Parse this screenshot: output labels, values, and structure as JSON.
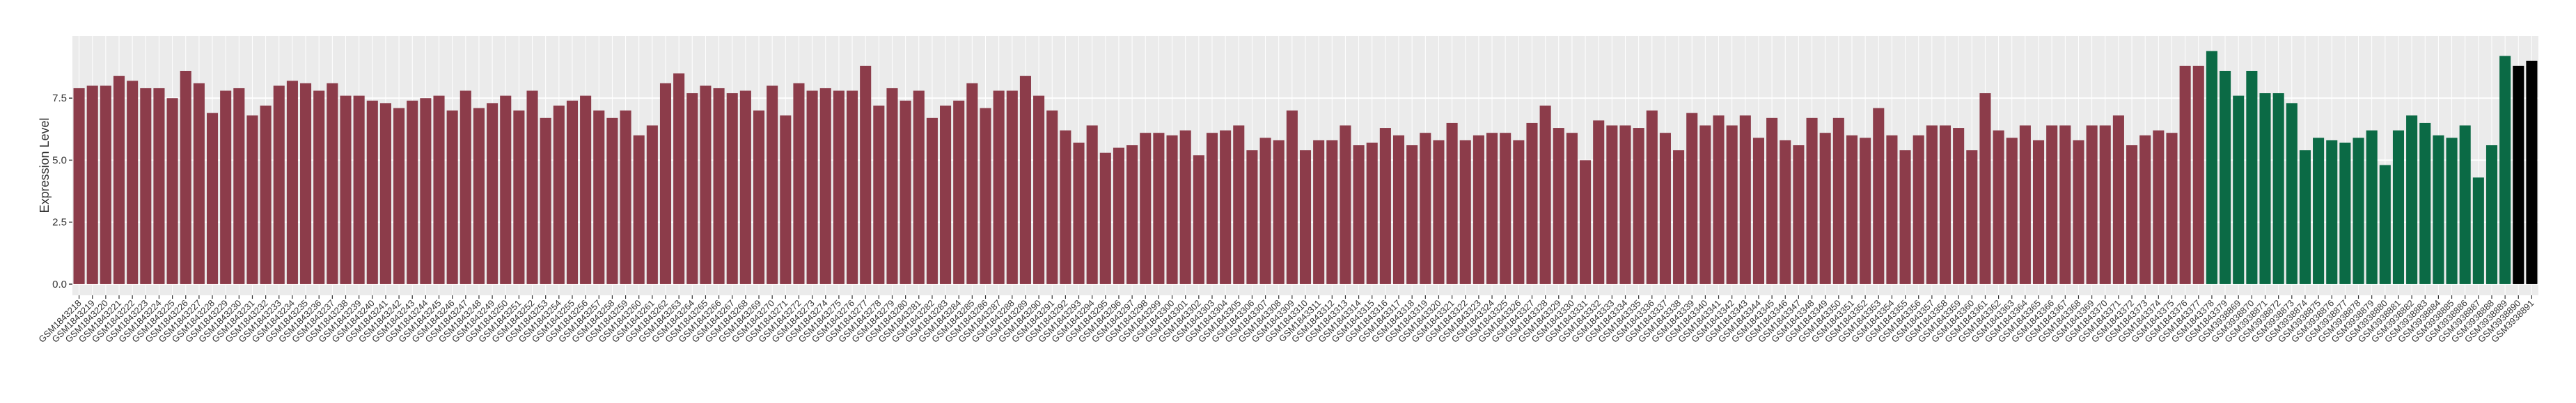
{
  "chart_data": {
    "type": "bar",
    "y_label": "Expression Level",
    "categories": [
      "GSM1843218",
      "GSM1843219",
      "GSM1843220",
      "GSM1843221",
      "GSM1843222",
      "GSM1843223",
      "GSM1843224",
      "GSM1843225",
      "GSM1843226",
      "GSM1843227",
      "GSM1843228",
      "GSM1843229",
      "GSM1843230",
      "GSM1843231",
      "GSM1843232",
      "GSM1843233",
      "GSM1843234",
      "GSM1843235",
      "GSM1843236",
      "GSM1843237",
      "GSM1843238",
      "GSM1843239",
      "GSM1843240",
      "GSM1843241",
      "GSM1843242",
      "GSM1843243",
      "GSM1843244",
      "GSM1843245",
      "GSM1843246",
      "GSM1843247",
      "GSM1843248",
      "GSM1843249",
      "GSM1843250",
      "GSM1843251",
      "GSM1843252",
      "GSM1843253",
      "GSM1843254",
      "GSM1843255",
      "GSM1843256",
      "GSM1843257",
      "GSM1843258",
      "GSM1843259",
      "GSM1843260",
      "GSM1843261",
      "GSM1843262",
      "GSM1843263",
      "GSM1843264",
      "GSM1843265",
      "GSM1843266",
      "GSM1843267",
      "GSM1843268",
      "GSM1843269",
      "GSM1843270",
      "GSM1843271",
      "GSM1843272",
      "GSM1843273",
      "GSM1843274",
      "GSM1843275",
      "GSM1843276",
      "GSM1843277",
      "GSM1843278",
      "GSM1843279",
      "GSM1843280",
      "GSM1843281",
      "GSM1843282",
      "GSM1843283",
      "GSM1843284",
      "GSM1843285",
      "GSM1843286",
      "GSM1843287",
      "GSM1843288",
      "GSM1843289",
      "GSM1843290",
      "GSM1843291",
      "GSM1843292",
      "GSM1843293",
      "GSM1843294",
      "GSM1843295",
      "GSM1843296",
      "GSM1843297",
      "GSM1843298",
      "GSM1843299",
      "GSM1843300",
      "GSM1843301",
      "GSM1843302",
      "GSM1843303",
      "GSM1843304",
      "GSM1843305",
      "GSM1843306",
      "GSM1843307",
      "GSM1843308",
      "GSM1843309",
      "GSM1843310",
      "GSM1843311",
      "GSM1843312",
      "GSM1843313",
      "GSM1843314",
      "GSM1843315",
      "GSM1843316",
      "GSM1843317",
      "GSM1843318",
      "GSM1843319",
      "GSM1843320",
      "GSM1843321",
      "GSM1843322",
      "GSM1843323",
      "GSM1843324",
      "GSM1843325",
      "GSM1843326",
      "GSM1843327",
      "GSM1843328",
      "GSM1843329",
      "GSM1843330",
      "GSM1843331",
      "GSM1843332",
      "GSM1843333",
      "GSM1843334",
      "GSM1843335",
      "GSM1843336",
      "GSM1843337",
      "GSM1843338",
      "GSM1843339",
      "GSM1843340",
      "GSM1843341",
      "GSM1843342",
      "GSM1843343",
      "GSM1843344",
      "GSM1843345",
      "GSM1843346",
      "GSM1843347",
      "GSM1843348",
      "GSM1843349",
      "GSM1843350",
      "GSM1843351",
      "GSM1843352",
      "GSM1843353",
      "GSM1843354",
      "GSM1843355",
      "GSM1843356",
      "GSM1843357",
      "GSM1843358",
      "GSM1843359",
      "GSM1843360",
      "GSM1843361",
      "GSM1843362",
      "GSM1843363",
      "GSM1843364",
      "GSM1843365",
      "GSM1843366",
      "GSM1843367",
      "GSM1843368",
      "GSM1843369",
      "GSM1843370",
      "GSM1843371",
      "GSM1843372",
      "GSM1843373",
      "GSM1843374",
      "GSM1843375",
      "GSM1843376",
      "GSM1843377",
      "GSM1843378",
      "GSM1843379",
      "GSM3938869",
      "GSM3938870",
      "GSM3938871",
      "GSM3938872",
      "GSM3938873",
      "GSM3938874",
      "GSM3938875",
      "GSM3938876",
      "GSM3938877",
      "GSM3938878",
      "GSM3938879",
      "GSM3938880",
      "GSM3938881",
      "GSM3938882",
      "GSM3938883",
      "GSM3938884",
      "GSM3938885",
      "GSM3938886",
      "GSM3938887",
      "GSM3938888",
      "GSM3938889",
      "GSM3938890",
      "GSM3938891"
    ],
    "values": [
      7.9,
      8.0,
      8.0,
      8.4,
      8.2,
      7.9,
      7.9,
      7.5,
      8.6,
      8.1,
      6.9,
      7.8,
      7.9,
      6.8,
      7.2,
      8.0,
      8.2,
      8.1,
      7.8,
      8.1,
      7.6,
      7.6,
      7.4,
      7.3,
      7.1,
      7.4,
      7.5,
      7.6,
      7.0,
      7.8,
      7.1,
      7.3,
      7.6,
      7.0,
      7.8,
      6.7,
      7.2,
      7.4,
      7.6,
      7.0,
      6.7,
      7.0,
      6.0,
      6.4,
      8.1,
      8.5,
      7.7,
      8.0,
      7.9,
      7.7,
      7.8,
      7.0,
      8.0,
      6.8,
      8.1,
      7.8,
      7.9,
      7.8,
      7.8,
      8.8,
      7.2,
      7.9,
      7.4,
      7.8,
      6.7,
      7.2,
      7.4,
      8.1,
      7.1,
      7.8,
      7.8,
      8.4,
      7.6,
      7.0,
      6.2,
      5.7,
      6.4,
      5.3,
      5.5,
      5.6,
      6.1,
      6.1,
      6.0,
      6.2,
      5.2,
      6.1,
      6.2,
      6.4,
      5.4,
      5.9,
      5.8,
      7.0,
      5.4,
      5.8,
      5.8,
      6.4,
      5.6,
      5.7,
      6.3,
      6.0,
      5.6,
      6.1,
      5.8,
      6.5,
      5.8,
      6.0,
      6.1,
      6.1,
      5.8,
      6.5,
      7.2,
      6.3,
      6.1,
      5.0,
      6.6,
      6.4,
      6.4,
      6.3,
      7.0,
      6.1,
      5.4,
      6.9,
      6.4,
      6.8,
      6.4,
      6.8,
      5.9,
      6.7,
      5.8,
      5.6,
      6.7,
      6.1,
      6.7,
      6.0,
      5.9,
      7.1,
      6.0,
      5.4,
      6.0,
      6.4,
      6.4,
      6.3,
      5.4,
      7.7,
      6.2,
      5.9,
      6.4,
      5.8,
      6.4,
      6.4,
      5.8,
      6.4,
      6.4,
      6.8,
      5.6,
      6.0,
      6.2,
      6.1,
      8.8,
      8.8,
      9.4,
      8.6,
      7.6,
      8.6,
      7.7,
      7.7,
      7.3,
      5.4,
      5.9,
      5.8,
      5.7,
      5.9,
      6.2,
      4.8,
      6.2,
      6.8,
      6.5,
      6.0,
      5.9,
      6.4,
      4.3,
      5.6,
      9.2,
      8.8,
      9.0
    ],
    "colors": [
      "#8c3c4a",
      "#8c3c4a",
      "#8c3c4a",
      "#8c3c4a",
      "#8c3c4a",
      "#8c3c4a",
      "#8c3c4a",
      "#8c3c4a",
      "#8c3c4a",
      "#8c3c4a",
      "#8c3c4a",
      "#8c3c4a",
      "#8c3c4a",
      "#8c3c4a",
      "#8c3c4a",
      "#8c3c4a",
      "#8c3c4a",
      "#8c3c4a",
      "#8c3c4a",
      "#8c3c4a",
      "#8c3c4a",
      "#8c3c4a",
      "#8c3c4a",
      "#8c3c4a",
      "#8c3c4a",
      "#8c3c4a",
      "#8c3c4a",
      "#8c3c4a",
      "#8c3c4a",
      "#8c3c4a",
      "#8c3c4a",
      "#8c3c4a",
      "#8c3c4a",
      "#8c3c4a",
      "#8c3c4a",
      "#8c3c4a",
      "#8c3c4a",
      "#8c3c4a",
      "#8c3c4a",
      "#8c3c4a",
      "#8c3c4a",
      "#8c3c4a",
      "#8c3c4a",
      "#8c3c4a",
      "#8c3c4a",
      "#8c3c4a",
      "#8c3c4a",
      "#8c3c4a",
      "#8c3c4a",
      "#8c3c4a",
      "#8c3c4a",
      "#8c3c4a",
      "#8c3c4a",
      "#8c3c4a",
      "#8c3c4a",
      "#8c3c4a",
      "#8c3c4a",
      "#8c3c4a",
      "#8c3c4a",
      "#8c3c4a",
      "#8c3c4a",
      "#8c3c4a",
      "#8c3c4a",
      "#8c3c4a",
      "#8c3c4a",
      "#8c3c4a",
      "#8c3c4a",
      "#8c3c4a",
      "#8c3c4a",
      "#8c3c4a",
      "#8c3c4a",
      "#8c3c4a",
      "#8c3c4a",
      "#8c3c4a",
      "#8c3c4a",
      "#8c3c4a",
      "#8c3c4a",
      "#8c3c4a",
      "#8c3c4a",
      "#8c3c4a",
      "#8c3c4a",
      "#8c3c4a",
      "#8c3c4a",
      "#8c3c4a",
      "#8c3c4a",
      "#8c3c4a",
      "#8c3c4a",
      "#8c3c4a",
      "#8c3c4a",
      "#8c3c4a",
      "#8c3c4a",
      "#8c3c4a",
      "#8c3c4a",
      "#8c3c4a",
      "#8c3c4a",
      "#8c3c4a",
      "#8c3c4a",
      "#8c3c4a",
      "#8c3c4a",
      "#8c3c4a",
      "#8c3c4a",
      "#8c3c4a",
      "#8c3c4a",
      "#8c3c4a",
      "#8c3c4a",
      "#8c3c4a",
      "#8c3c4a",
      "#8c3c4a",
      "#8c3c4a",
      "#8c3c4a",
      "#8c3c4a",
      "#8c3c4a",
      "#8c3c4a",
      "#8c3c4a",
      "#8c3c4a",
      "#8c3c4a",
      "#8c3c4a",
      "#8c3c4a",
      "#8c3c4a",
      "#8c3c4a",
      "#8c3c4a",
      "#8c3c4a",
      "#8c3c4a",
      "#8c3c4a",
      "#8c3c4a",
      "#8c3c4a",
      "#8c3c4a",
      "#8c3c4a",
      "#8c3c4a",
      "#8c3c4a",
      "#8c3c4a",
      "#8c3c4a",
      "#8c3c4a",
      "#8c3c4a",
      "#8c3c4a",
      "#8c3c4a",
      "#8c3c4a",
      "#8c3c4a",
      "#8c3c4a",
      "#8c3c4a",
      "#8c3c4a",
      "#8c3c4a",
      "#8c3c4a",
      "#8c3c4a",
      "#8c3c4a",
      "#8c3c4a",
      "#8c3c4a",
      "#8c3c4a",
      "#8c3c4a",
      "#8c3c4a",
      "#8c3c4a",
      "#8c3c4a",
      "#8c3c4a",
      "#8c3c4a",
      "#8c3c4a",
      "#8c3c4a",
      "#8c3c4a",
      "#8c3c4a",
      "#8c3c4a",
      "#8c3c4a",
      "#0b6a45",
      "#0b6a45",
      "#0b6a45",
      "#0b6a45",
      "#0b6a45",
      "#0b6a45",
      "#0b6a45",
      "#0b6a45",
      "#0b6a45",
      "#0b6a45",
      "#0b6a45",
      "#0b6a45",
      "#0b6a45",
      "#0b6a45",
      "#0b6a45",
      "#0b6a45",
      "#0b6a45",
      "#0b6a45",
      "#0b6a45",
      "#0b6a45",
      "#0b6a45",
      "#0b6a45",
      "#0b6a45"
    ],
    "ylim": [
      -0.45,
      10.0
    ],
    "yticks": [
      {
        "value": 0,
        "label": "0.0"
      },
      {
        "value": 2.5,
        "label": "2.5"
      },
      {
        "value": 5,
        "label": "5.0"
      },
      {
        "value": 7.5,
        "label": "7.5"
      }
    ],
    "grid": true
  }
}
